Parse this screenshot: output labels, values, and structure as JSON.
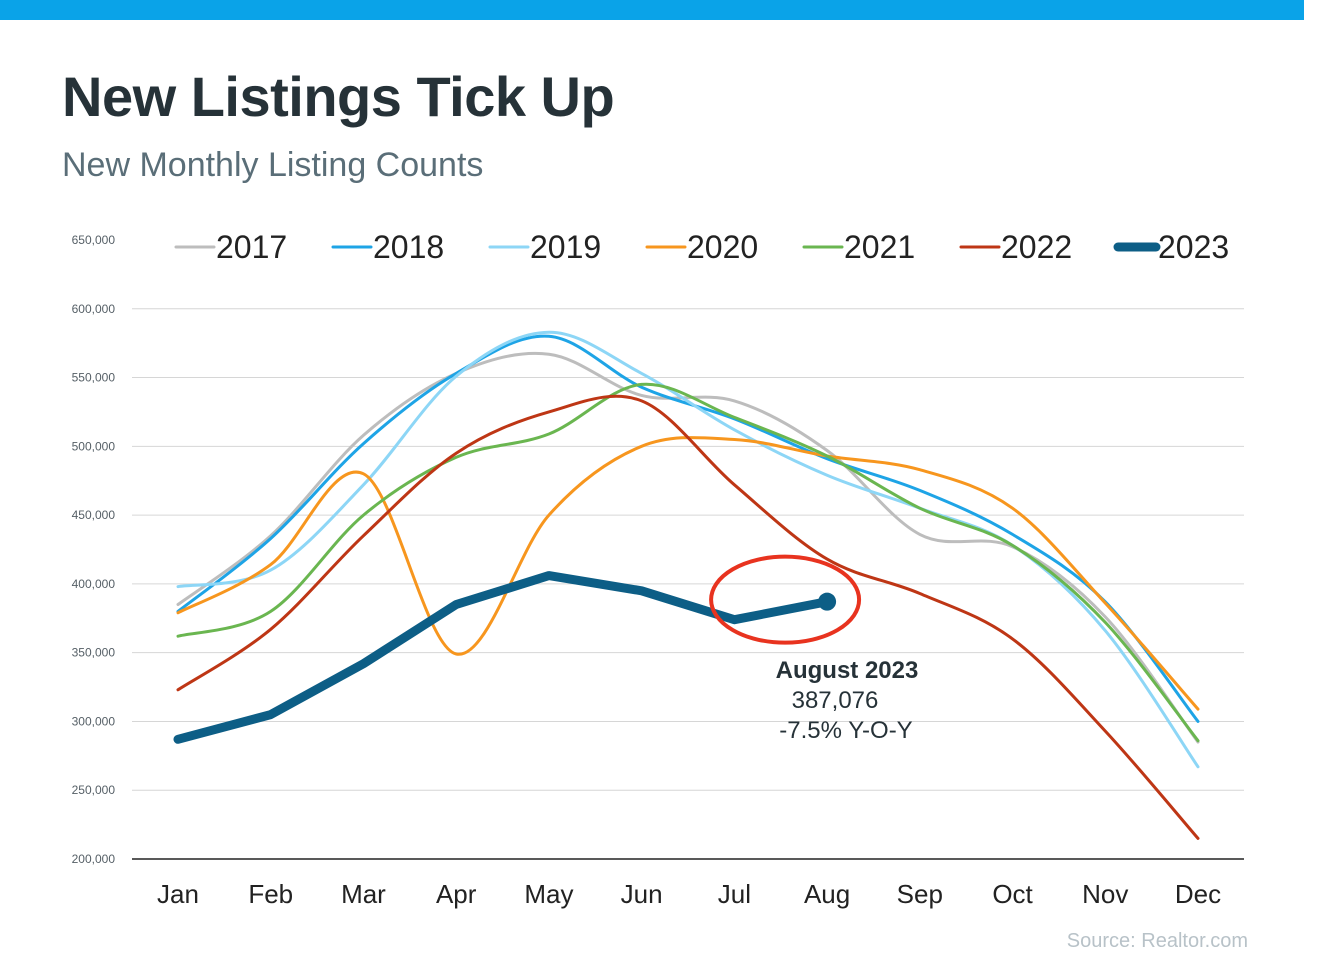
{
  "header": {
    "title": "New Listings Tick Up",
    "subtitle": "New Monthly Listing Counts",
    "accent_color": "#0aa3e8"
  },
  "source": "Source: Realtor.com",
  "chart_data": {
    "type": "line",
    "title": "New Listings Tick Up",
    "subtitle": "New Monthly Listing Counts",
    "xlabel": "",
    "ylabel": "",
    "categories": [
      "Jan",
      "Feb",
      "Mar",
      "Apr",
      "May",
      "Jun",
      "Jul",
      "Aug",
      "Sep",
      "Oct",
      "Nov",
      "Dec"
    ],
    "ylim": [
      200000,
      650000
    ],
    "yticks": [
      200000,
      250000,
      300000,
      350000,
      400000,
      450000,
      500000,
      550000,
      600000,
      650000
    ],
    "ytick_labels": [
      "200,000",
      "250,000",
      "300,000",
      "350,000",
      "400,000",
      "450,000",
      "500,000",
      "550,000",
      "600,000",
      "650,000"
    ],
    "grid": true,
    "legend_position": "top",
    "series": [
      {
        "name": "2017",
        "color": "#bdbdbd",
        "width": 3,
        "values": [
          385000,
          435000,
          508000,
          553000,
          567000,
          537000,
          533000,
          497000,
          436000,
          427000,
          376000,
          285000
        ]
      },
      {
        "name": "2018",
        "color": "#1ea4e6",
        "width": 3,
        "values": [
          380000,
          433000,
          502000,
          553000,
          580000,
          543000,
          520000,
          491000,
          468000,
          436000,
          387000,
          300000
        ]
      },
      {
        "name": "2019",
        "color": "#8dd6f6",
        "width": 3,
        "values": [
          398000,
          410000,
          472000,
          551000,
          583000,
          553000,
          512000,
          479000,
          455000,
          428000,
          366000,
          267000
        ]
      },
      {
        "name": "2020",
        "color": "#f7961e",
        "width": 3,
        "values": [
          379000,
          414000,
          480000,
          349000,
          450000,
          500000,
          505000,
          493000,
          483000,
          455000,
          386000,
          309000
        ]
      },
      {
        "name": "2021",
        "color": "#6ab650",
        "width": 3,
        "values": [
          362000,
          380000,
          450000,
          492000,
          509000,
          545000,
          521000,
          493000,
          455000,
          428000,
          372000,
          286000
        ]
      },
      {
        "name": "2022",
        "color": "#be3615",
        "width": 3,
        "values": [
          323000,
          367000,
          435000,
          495000,
          525000,
          533000,
          472000,
          418000,
          393000,
          360000,
          293000,
          215000
        ]
      },
      {
        "name": "2023",
        "color": "#0d5e86",
        "width": 9,
        "values": [
          287000,
          305000,
          342000,
          385000,
          406000,
          395000,
          374000,
          387076,
          null,
          null,
          null,
          null
        ]
      }
    ],
    "annotation": {
      "title": "August 2023",
      "value": "387,076",
      "change": "-7.5% Y-O-Y",
      "circle_color": "#e8331f"
    }
  }
}
